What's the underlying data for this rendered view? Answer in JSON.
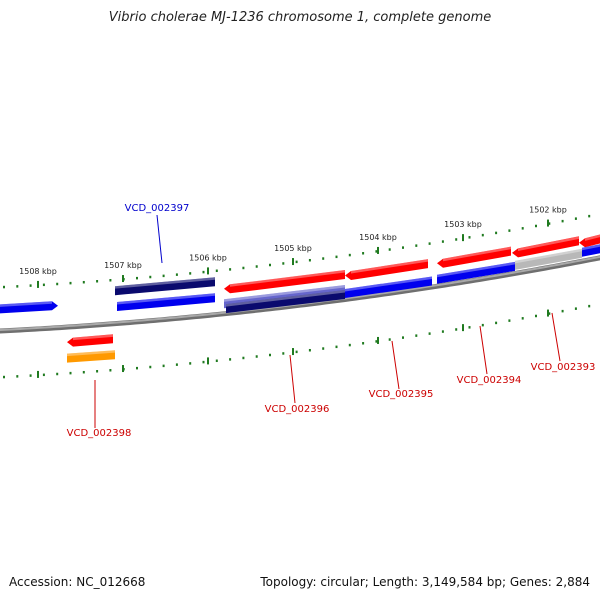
{
  "title": "Vibrio cholerae MJ-1236 chromosome 1, complete genome",
  "footer": {
    "accession": "Accession: NC_012668",
    "summary": "Topology: circular; Length: 3,149,584 bp; Genes: 2,884"
  },
  "ruler": {
    "ticks": [
      {
        "label": "1502 kbp",
        "kbp": 1502
      },
      {
        "label": "1503 kbp",
        "kbp": 1503
      },
      {
        "label": "1504 kbp",
        "kbp": 1504
      },
      {
        "label": "1505 kbp",
        "kbp": 1505
      },
      {
        "label": "1506 kbp",
        "kbp": 1506
      },
      {
        "label": "1507 kbp",
        "kbp": 1507
      },
      {
        "label": "1508 kbp",
        "kbp": 1508
      }
    ]
  },
  "colors": {
    "backbone": "#8a8a8a",
    "tick": "#1f7a1f",
    "label_red": "#cc0000",
    "label_blue": "#0000cc",
    "red": "#ff0000",
    "blue": "#0000ee",
    "navy": "#0a0a6e",
    "orange": "#ff9900",
    "gray": "#b8b8b8",
    "violet": "#6666cc"
  },
  "gene_labels": [
    {
      "name": "VCD_002397",
      "color": "blue"
    },
    {
      "name": "VCD_002398",
      "color": "red"
    },
    {
      "name": "VCD_002396",
      "color": "red"
    },
    {
      "name": "VCD_002395",
      "color": "red"
    },
    {
      "name": "VCD_002394",
      "color": "red"
    },
    {
      "name": "VCD_002393",
      "color": "red"
    }
  ]
}
